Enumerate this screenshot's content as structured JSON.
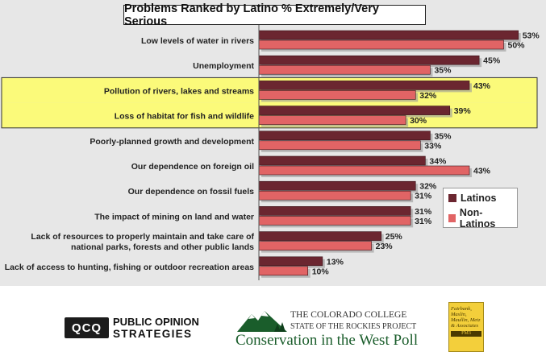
{
  "chart_data": {
    "type": "bar",
    "orientation": "horizontal",
    "title": "Problems Ranked by Latino % Extremely/Very Serious",
    "categories": [
      "Low levels of water in rivers",
      "Unemployment",
      "Pollution of rivers, lakes and streams",
      "Loss of habitat for fish and wildlife",
      "Poorly-planned growth and development",
      "Our dependence on foreign oil",
      "Our dependence on fossil fuels",
      "The impact of mining on land and water",
      "Lack of resources to properly maintain and take care of\nnational parks, forests and other public lands",
      "Lack of access to hunting, fishing or outdoor recreation areas"
    ],
    "series": [
      {
        "name": "Latinos",
        "values": [
          53,
          45,
          43,
          39,
          35,
          34,
          32,
          31,
          25,
          13
        ]
      },
      {
        "name": "Non-Latinos",
        "values": [
          50,
          35,
          32,
          30,
          33,
          43,
          31,
          31,
          23,
          10
        ]
      }
    ],
    "value_suffix": "%",
    "highlighted": [
      "Pollution of rivers, lakes and streams",
      "Loss of habitat for fish and wildlife"
    ],
    "colors": {
      "Latinos": "#6b2630",
      "Non-Latinos": "#e16465",
      "highlight": "#fbfa7a",
      "background": "#e7e7e7"
    },
    "legend_position": "right",
    "grid": false
  },
  "footer": {
    "pos_mark": "QCQ",
    "pos_line1": "PUBLIC OPINION",
    "pos_line2": "STRATEGIES",
    "cc_line1": "THE COLORADO COLLEGE",
    "cc_line2": "STATE OF THE ROCKIES PROJECT",
    "cc_line3": "Conservation in the West Poll",
    "fm3_text": "Fairbank, Maslin, Maullin, Metz & Associates",
    "fm3_badge": "FM3"
  }
}
